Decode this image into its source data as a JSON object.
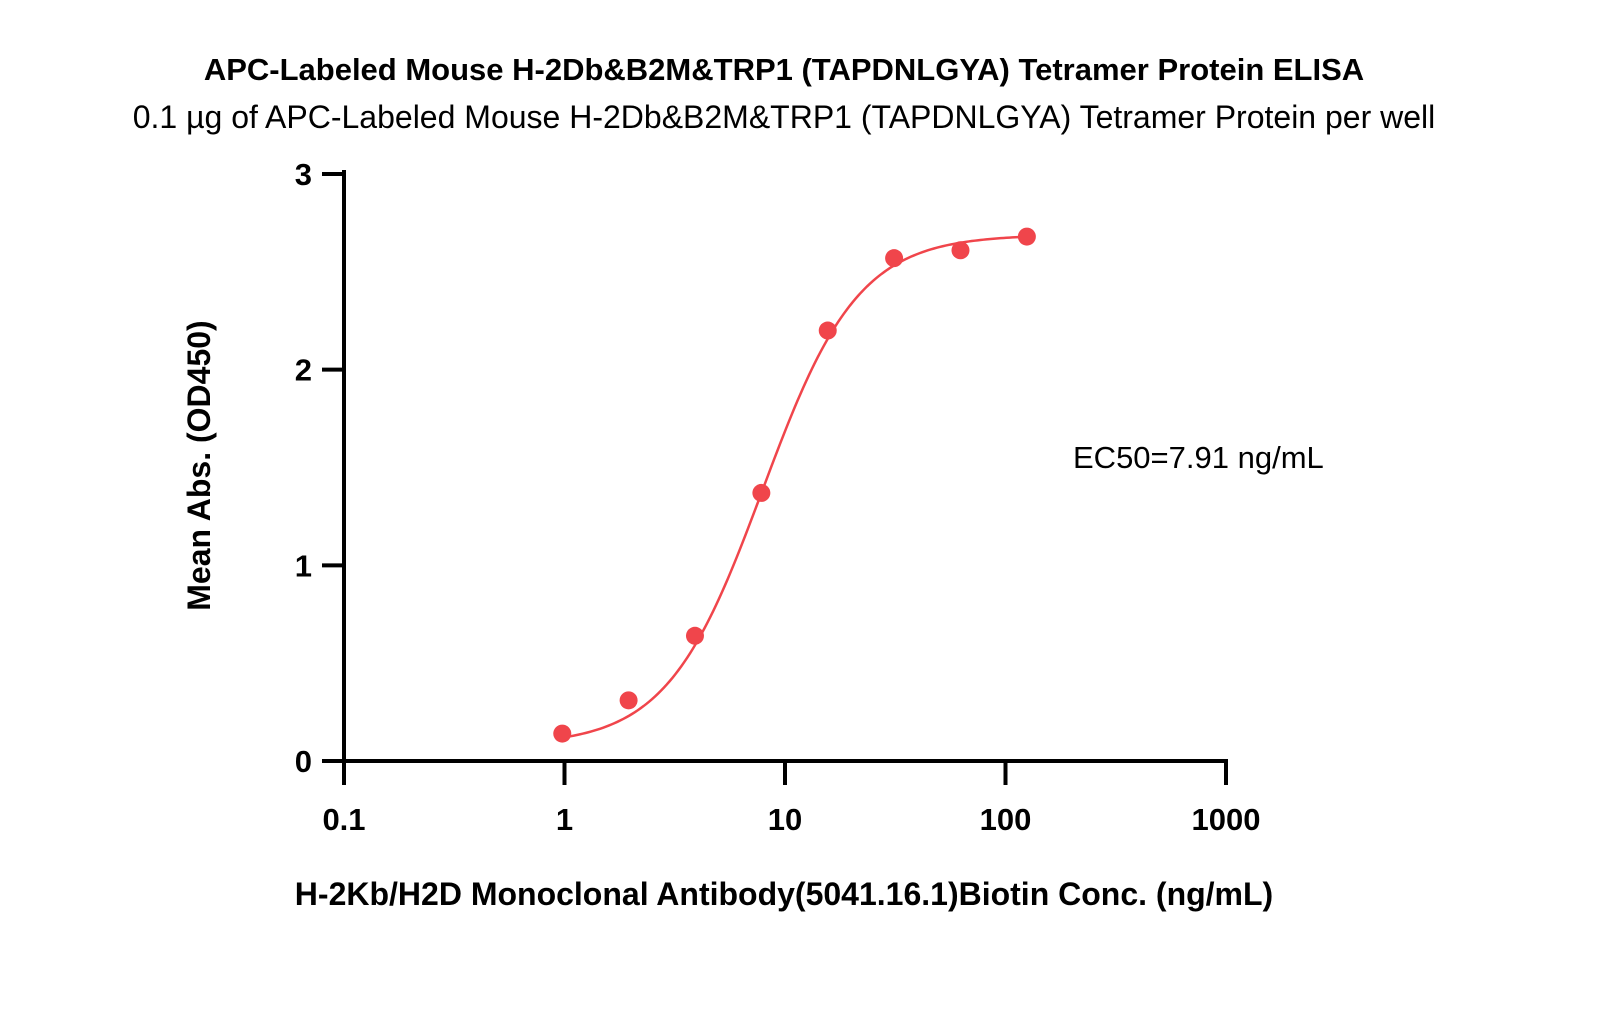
{
  "chart_data": {
    "type": "scatter",
    "title": "APC-Labeled Mouse H-2Db&B2M&TRP1 (TAPDNLGYA) Tetramer Protein ELISA",
    "subtitle": "0.1 µg of APC-Labeled Mouse H-2Db&B2M&TRP1 (TAPDNLGYA) Tetramer Protein per well",
    "xlabel": "H-2Kb/H2D Monoclonal Antibody(5041.16.1)Biotin Conc. (ng/mL)",
    "ylabel": "Mean Abs. (OD450)",
    "x_scale": "log",
    "xlim": [
      0.1,
      1000
    ],
    "ylim": [
      0,
      3
    ],
    "x_ticks": [
      0.1,
      1,
      10,
      100,
      1000
    ],
    "x_tick_labels": [
      "0.1",
      "1",
      "10",
      "100",
      "1000"
    ],
    "y_ticks": [
      0,
      1,
      2,
      3
    ],
    "y_tick_labels": [
      "0",
      "1",
      "2",
      "3"
    ],
    "grid": false,
    "annotation": "EC50=7.91 ng/mL",
    "colors": {
      "series": "#f0454b",
      "axes": "#000000"
    },
    "series": [
      {
        "x": [
          0.977,
          1.953,
          3.906,
          7.813,
          15.625,
          31.25,
          62.5,
          125
        ],
        "y": [
          0.14,
          0.31,
          0.64,
          1.37,
          2.2,
          2.57,
          2.61,
          2.68
        ]
      }
    ],
    "fit": {
      "model": "4PL",
      "bottom": 0.08,
      "top": 2.69,
      "ec50": 7.91,
      "hill": 2.0
    }
  }
}
